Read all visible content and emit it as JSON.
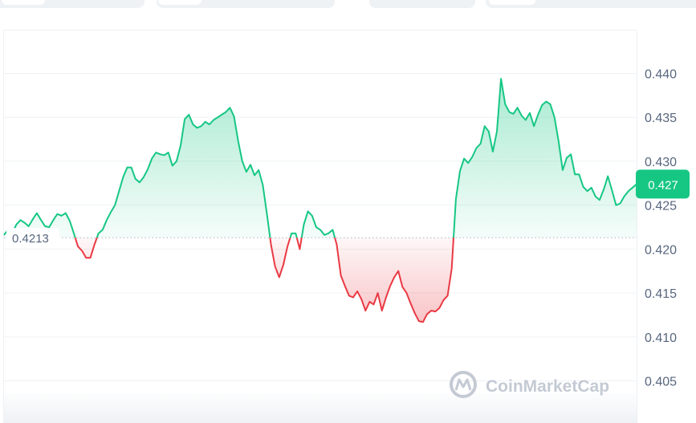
{
  "chart_data": {
    "type": "area",
    "ylim": [
      0.401,
      0.4435
    ],
    "y_ticks": [
      "0.440",
      "0.435",
      "0.430",
      "0.425",
      "0.420",
      "0.415",
      "0.410",
      "0.405"
    ],
    "y_tick_values": [
      0.44,
      0.435,
      0.43,
      0.425,
      0.42,
      0.415,
      0.41,
      0.405
    ],
    "baseline": 0.4213,
    "baseline_label": "0.4213",
    "current_value": 0.4274,
    "current_label": "0.427",
    "grid": true,
    "colors": {
      "up": "#16c784",
      "down": "#ea3943",
      "badge": "#16c784"
    },
    "series": [
      {
        "values": [
          0.4216,
          0.4222,
          0.4218,
          0.4228,
          0.4233,
          0.423,
          0.4226,
          0.4234,
          0.4241,
          0.4233,
          0.4226,
          0.4225,
          0.4233,
          0.424,
          0.4238,
          0.4241,
          0.4232,
          0.4218,
          0.4203,
          0.4198,
          0.419,
          0.419,
          0.4205,
          0.4218,
          0.4222,
          0.4233,
          0.4242,
          0.425,
          0.4266,
          0.4282,
          0.4293,
          0.4293,
          0.428,
          0.4276,
          0.4282,
          0.4291,
          0.4303,
          0.431,
          0.4308,
          0.4307,
          0.431,
          0.4295,
          0.43,
          0.4318,
          0.4348,
          0.4353,
          0.4342,
          0.4338,
          0.434,
          0.4345,
          0.4342,
          0.4347,
          0.435,
          0.4353,
          0.4356,
          0.4361,
          0.4351,
          0.4323,
          0.43,
          0.4288,
          0.4296,
          0.4284,
          0.429,
          0.4273,
          0.424,
          0.4205,
          0.418,
          0.4168,
          0.4182,
          0.4203,
          0.4218,
          0.4218,
          0.42,
          0.4228,
          0.4243,
          0.4238,
          0.4225,
          0.4222,
          0.4216,
          0.4218,
          0.4222,
          0.4205,
          0.417,
          0.4158,
          0.4147,
          0.4145,
          0.4152,
          0.4143,
          0.413,
          0.414,
          0.4137,
          0.415,
          0.413,
          0.4145,
          0.4158,
          0.4168,
          0.4175,
          0.4157,
          0.415,
          0.4138,
          0.4127,
          0.4118,
          0.4117,
          0.4126,
          0.413,
          0.4129,
          0.4133,
          0.4142,
          0.4147,
          0.4178,
          0.4257,
          0.4289,
          0.4303,
          0.4298,
          0.4305,
          0.4315,
          0.432,
          0.434,
          0.4334,
          0.4311,
          0.4334,
          0.4394,
          0.4365,
          0.4356,
          0.4354,
          0.4361,
          0.4352,
          0.4347,
          0.4355,
          0.434,
          0.4353,
          0.4364,
          0.4368,
          0.4365,
          0.435,
          0.4323,
          0.429,
          0.4304,
          0.4308,
          0.4285,
          0.4285,
          0.4271,
          0.4266,
          0.427,
          0.426,
          0.4256,
          0.4268,
          0.4283,
          0.4267,
          0.425,
          0.4252,
          0.426,
          0.4266,
          0.427,
          0.4274
        ]
      }
    ]
  },
  "watermark": {
    "text": "CoinMarketCap"
  }
}
